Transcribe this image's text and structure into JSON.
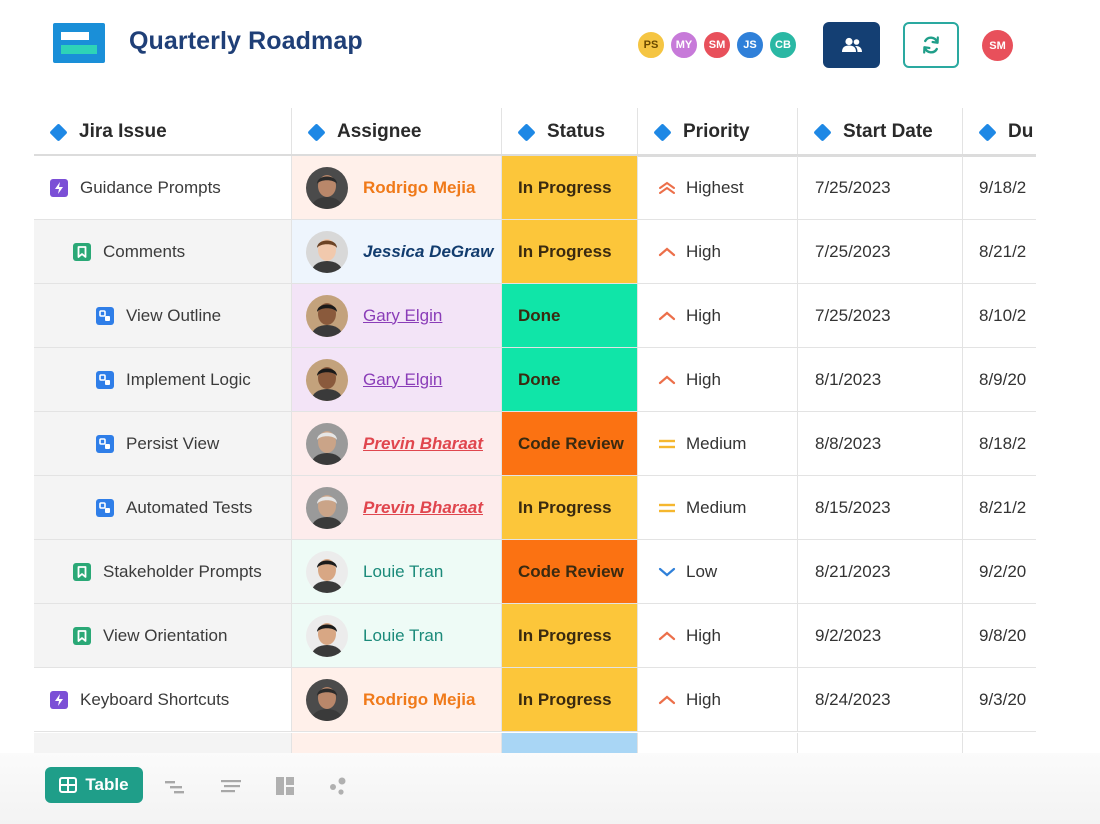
{
  "header": {
    "title": "Quarterly Roadmap",
    "collaborators": [
      {
        "initials": "PS",
        "bg": "#f5c542",
        "fg": "#6b4a00"
      },
      {
        "initials": "MY",
        "bg": "#c77ad9",
        "fg": "#ffffff"
      },
      {
        "initials": "SM",
        "bg": "#e8505b",
        "fg": "#ffffff"
      },
      {
        "initials": "JS",
        "bg": "#2f80d9",
        "fg": "#ffffff"
      },
      {
        "initials": "CB",
        "bg": "#2ab8a4",
        "fg": "#ffffff"
      }
    ],
    "current_user": "SM"
  },
  "columns": [
    "Jira Issue",
    "Assignee",
    "Status",
    "Priority",
    "Start Date",
    "Du"
  ],
  "rows": [
    {
      "issue": "Guidance Prompts",
      "issue_type": "epic",
      "assignee": "Rodrigo Mejia",
      "status": "In Progress",
      "priority": "Highest",
      "start": "7/25/2023",
      "due": "9/18/2"
    },
    {
      "issue": "Comments",
      "issue_type": "story",
      "assignee": "Jessica DeGraw",
      "status": "In Progress",
      "priority": "High",
      "start": "7/25/2023",
      "due": "8/21/2"
    },
    {
      "issue": "View Outline",
      "issue_type": "subtask",
      "assignee": "Gary Elgin",
      "status": "Done",
      "priority": "High",
      "start": "7/25/2023",
      "due": "8/10/2"
    },
    {
      "issue": "Implement Logic",
      "issue_type": "subtask",
      "assignee": "Gary Elgin",
      "status": "Done",
      "priority": "High",
      "start": "8/1/2023",
      "due": "8/9/20"
    },
    {
      "issue": "Persist View",
      "issue_type": "subtask",
      "assignee": "Previn Bharaat",
      "status": "Code Review",
      "priority": "Medium",
      "start": "8/8/2023",
      "due": "8/18/2"
    },
    {
      "issue": "Automated Tests",
      "issue_type": "subtask",
      "assignee": "Previn Bharaat",
      "status": "In Progress",
      "priority": "Medium",
      "start": "8/15/2023",
      "due": "8/21/2"
    },
    {
      "issue": "Stakeholder Prompts",
      "issue_type": "story",
      "assignee": "Louie Tran",
      "status": "Code Review",
      "priority": "Low",
      "start": "8/21/2023",
      "due": "9/2/20"
    },
    {
      "issue": "View Orientation",
      "issue_type": "story",
      "assignee": "Louie Tran",
      "status": "In Progress",
      "priority": "High",
      "start": "9/2/2023",
      "due": "9/8/20"
    },
    {
      "issue": "Keyboard Shortcuts",
      "issue_type": "epic",
      "assignee": "Rodrigo Mejia",
      "status": "In Progress",
      "priority": "High",
      "start": "8/24/2023",
      "due": "9/3/20"
    }
  ],
  "toolbar": {
    "table_label": "Table",
    "views": [
      "gantt-icon",
      "filter-list-icon",
      "board-icon",
      "network-icon"
    ]
  },
  "colors": {
    "status": {
      "In Progress": "#fcc63a",
      "Done": "#10e5a8",
      "Code Review": "#fb7212"
    },
    "assignee_bg": {
      "Rodrigo Mejia": "#fff0ea",
      "Jessica DeGraw": "#eef5fd",
      "Gary Elgin": "#f3e4f7",
      "Previn Bharaat": "#fdecec",
      "Louie Tran": "#eefbf6"
    },
    "assignee_fg": {
      "Rodrigo Mejia": "#f07a1a",
      "Jessica DeGraw": "#123c6e",
      "Gary Elgin": "#8a3db8",
      "Previn Bharaat": "#e0464e",
      "Louie Tran": "#1b8a7a"
    },
    "accent": "#1f9e89"
  }
}
